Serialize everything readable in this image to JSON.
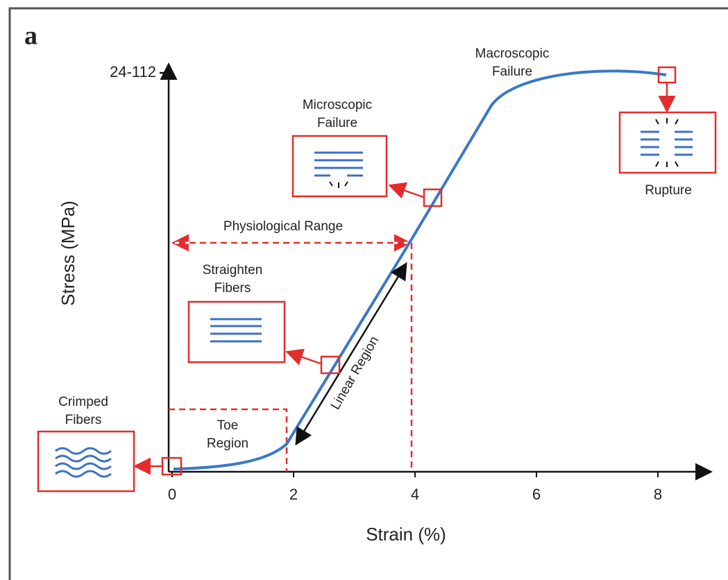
{
  "panel_label": "a",
  "x_axis": {
    "label": "Strain (%)",
    "ticks": [
      0,
      2,
      4,
      6,
      8
    ]
  },
  "y_axis": {
    "label": "Stress (MPa)",
    "tick": "24-112"
  },
  "annotations": {
    "crimped_fibers": [
      "Crimped",
      "Fibers"
    ],
    "straighten_fibers": [
      "Straighten",
      "Fibers"
    ],
    "microscopic_failure": [
      "Microscopic",
      "Failure"
    ],
    "macroscopic_failure": [
      "Macroscopic",
      "Failure"
    ],
    "rupture": "Rupture",
    "toe_region": [
      "Toe",
      "Region"
    ],
    "physiological_range": "Physiological Range",
    "linear_region": "Linear Region"
  }
}
